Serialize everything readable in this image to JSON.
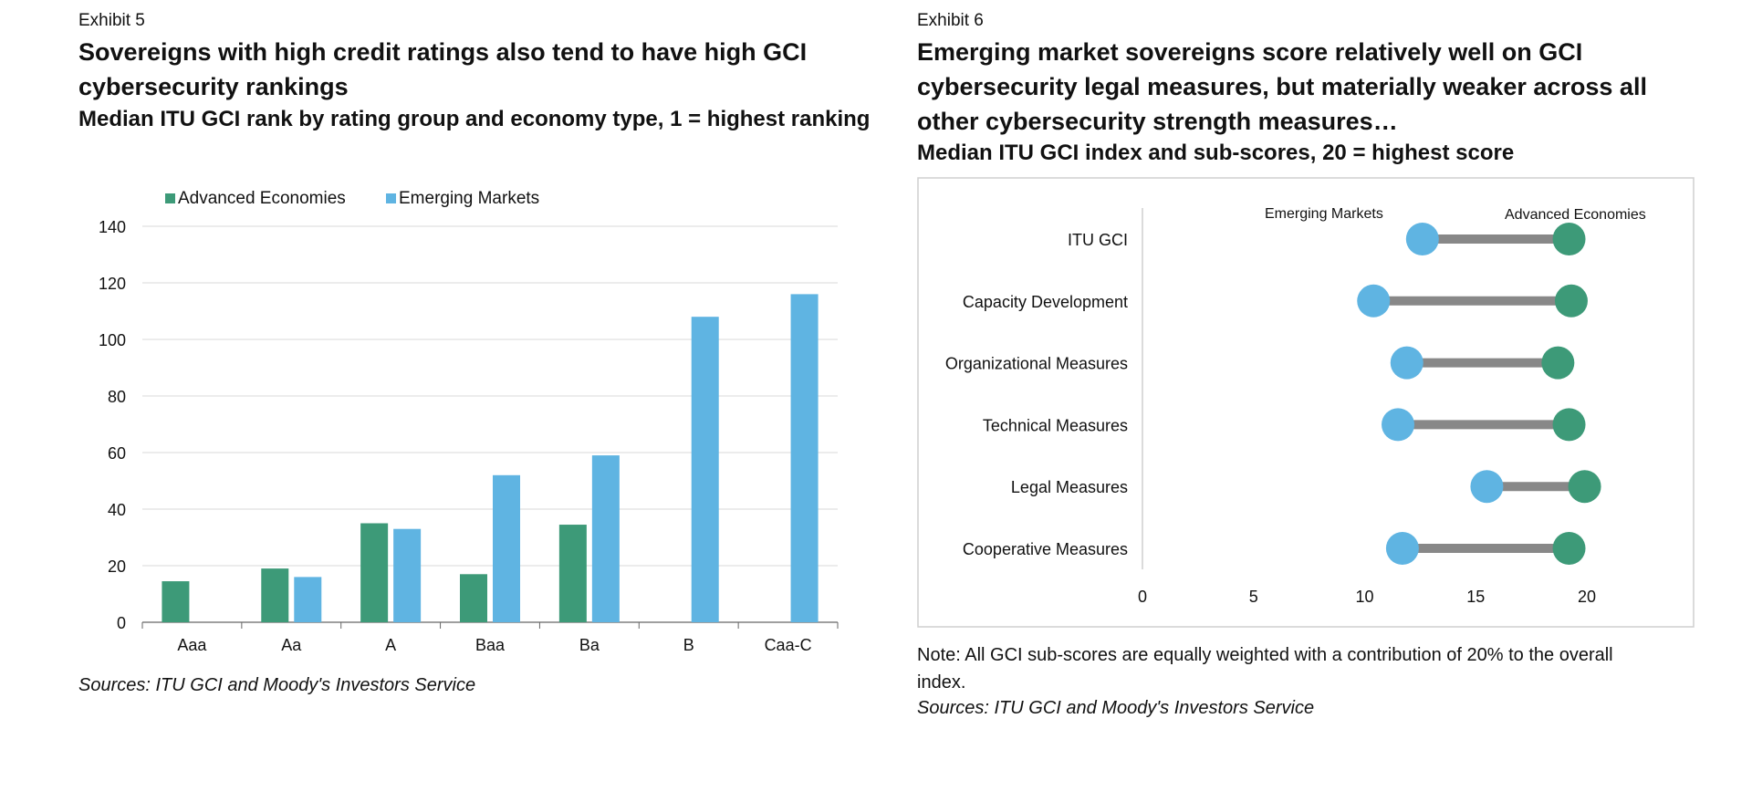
{
  "exhibit5": {
    "label": "Exhibit 5",
    "title_line1": "Sovereigns with high credit ratings also tend to have high GCI",
    "title_line2": "cybersecurity rankings",
    "subtitle": "Median ITU GCI rank by rating group and economy type, 1 = highest ranking",
    "source": "Sources: ITU GCI and Moody's Investors Service"
  },
  "exhibit6": {
    "label": "Exhibit 6",
    "title_line1": "Emerging market sovereigns score relatively well on GCI",
    "title_line2": "cybersecurity legal measures, but materially weaker across all",
    "title_line3": "other cybersecurity strength measures…",
    "subtitle": "Median ITU GCI index and sub-scores, 20 = highest score",
    "note_line1": "Note: All GCI sub-scores are equally weighted with a contribution of 20% to the overall",
    "note_line2": "index.",
    "source": "Sources: ITU GCI and Moody's Investors Service"
  },
  "colors": {
    "advanced": "#3d9a78",
    "emerging": "#5fb4e2",
    "connector": "#888888",
    "grid": "#d9d9d9"
  },
  "chart_data": [
    {
      "type": "bar",
      "categories": [
        "Aaa",
        "Aa",
        "A",
        "Baa",
        "Ba",
        "B",
        "Caa-C"
      ],
      "series": [
        {
          "name": "Advanced Economies",
          "values": [
            14.5,
            19,
            35,
            17,
            34.5,
            null,
            null
          ]
        },
        {
          "name": "Emerging Markets",
          "values": [
            null,
            16,
            33,
            52,
            59,
            108,
            116
          ]
        }
      ],
      "yticks": [
        "0",
        "20",
        "40",
        "60",
        "80",
        "100",
        "120",
        "140"
      ],
      "ylim": [
        0,
        140
      ],
      "grid": true,
      "legend": "top-left"
    },
    {
      "type": "scatter",
      "subtype": "dumbbell",
      "categories": [
        "ITU GCI",
        "Capacity Development",
        "Organizational Measures",
        "Technical Measures",
        "Legal Measures",
        "Cooperative Measures"
      ],
      "series": [
        {
          "name": "Emerging Markets",
          "values": [
            12.6,
            10.4,
            11.9,
            11.5,
            15.5,
            11.7
          ]
        },
        {
          "name": "Advanced Economies",
          "values": [
            19.2,
            19.3,
            18.7,
            19.2,
            19.9,
            19.2
          ]
        }
      ],
      "xticks": [
        "0",
        "5",
        "10",
        "15",
        "20"
      ],
      "xlim": [
        0,
        20
      ],
      "legend": "top-right"
    }
  ]
}
